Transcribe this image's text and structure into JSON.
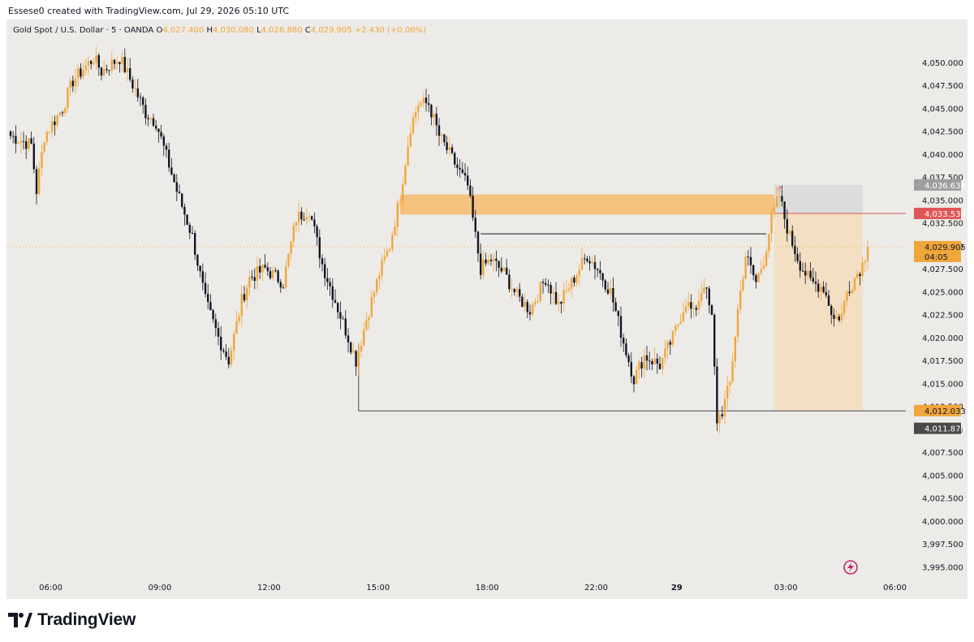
{
  "header": {
    "attribution": "Essese0 created with TradingView.com, Jul 29, 2026 05:10 UTC"
  },
  "symbol_bar": {
    "name": "Gold Spot / U.S. Dollar · 5 · OANDA",
    "o_label": "O",
    "o_value": "4,027.400",
    "h_label": "H",
    "h_value": "4,030.080",
    "l_label": "L",
    "l_value": "4,026.880",
    "c_label": "C",
    "c_value": "4,029.905",
    "change": "+2.430 (+0.06%)"
  },
  "colors": {
    "background": "#edebe8",
    "up_candle": "#f0a63b",
    "down_candle": "#131722",
    "zone": "#f5c27f",
    "target_box": "#f3dfc3",
    "stop_box": "#dcdcdc",
    "stop_badge": "#e05656",
    "price_badge": "#f0a63b"
  },
  "price_badges": {
    "stop_top": "4,036.634",
    "entry": "4,033.530",
    "last": "4,029.905",
    "countdown": "04:05",
    "target": "4,012.033",
    "low": "4,011.879"
  },
  "footer": {
    "brand": "TradingView",
    "logo_icon": "tradingview-logo-icon",
    "lightning_icon": "lightning-icon"
  },
  "chart_data": {
    "type": "candlestick",
    "symbol": "XAUUSD",
    "timeframe": "5",
    "y_ticks": [
      "4,050.000",
      "4,047.500",
      "4,045.000",
      "4,042.500",
      "4,040.000",
      "4,037.500",
      "4,035.000",
      "4,032.500",
      "4,030.000",
      "4,027.500",
      "4,025.000",
      "4,022.500",
      "4,020.000",
      "4,017.500",
      "4,015.000",
      "4,012.500",
      "4,010.000",
      "4,007.500",
      "4,005.000",
      "4,002.500",
      "4,000.000",
      "3,997.500",
      "3,995.000"
    ],
    "ylim": [
      3994.5,
      4052.2
    ],
    "x_ticks": [
      {
        "label": "06:00",
        "bold": false
      },
      {
        "label": "09:00",
        "bold": false
      },
      {
        "label": "12:00",
        "bold": false
      },
      {
        "label": "15:00",
        "bold": false
      },
      {
        "label": "18:00",
        "bold": false
      },
      {
        "label": "22:00",
        "bold": false
      },
      {
        "label": "29",
        "bold": true
      },
      {
        "label": "03:00",
        "bold": false
      },
      {
        "label": "06:00",
        "bold": false
      }
    ],
    "x_tick_candle_index": [
      3,
      45,
      87,
      129,
      171,
      213,
      244,
      286,
      328
    ],
    "candle_count_visible": 331,
    "path": [
      [
        0,
        4042.0
      ],
      [
        8,
        4041.0
      ],
      [
        10,
        4036.0
      ],
      [
        13,
        4042.0
      ],
      [
        20,
        4045.0
      ],
      [
        24,
        4048.0
      ],
      [
        32,
        4050.5
      ],
      [
        35,
        4049.0
      ],
      [
        42,
        4050.5
      ],
      [
        48,
        4047.0
      ],
      [
        52,
        4044.5
      ],
      [
        56,
        4043.5
      ],
      [
        64,
        4036.0
      ],
      [
        70,
        4031.0
      ],
      [
        75,
        4024.0
      ],
      [
        80,
        4020.0
      ],
      [
        84,
        4017.5
      ],
      [
        89,
        4024.0
      ],
      [
        92,
        4026.5
      ],
      [
        98,
        4027.5
      ],
      [
        105,
        4026.0
      ],
      [
        110,
        4033.0
      ],
      [
        115,
        4034.0
      ],
      [
        120,
        4028.0
      ],
      [
        125,
        4024.0
      ],
      [
        130,
        4020.0
      ],
      [
        133,
        4017.5
      ],
      [
        137,
        4022.0
      ],
      [
        142,
        4027.0
      ],
      [
        146,
        4030.0
      ],
      [
        150,
        4035.5
      ],
      [
        154,
        4043.0
      ],
      [
        157,
        4045.5
      ],
      [
        161,
        4045.5
      ],
      [
        165,
        4042.0
      ],
      [
        169,
        4040.0
      ],
      [
        173,
        4038.0
      ],
      [
        176,
        4036.5
      ],
      [
        179,
        4031.0
      ],
      [
        181,
        4027.5
      ],
      [
        185,
        4028.5
      ],
      [
        190,
        4027.0
      ],
      [
        195,
        4024.5
      ],
      [
        200,
        4023.0
      ],
      [
        206,
        4026.5
      ],
      [
        211,
        4023.5
      ],
      [
        216,
        4026.0
      ],
      [
        222,
        4029.0
      ],
      [
        226,
        4027.5
      ],
      [
        231,
        4025.0
      ],
      [
        236,
        4019.5
      ],
      [
        240,
        4015.5
      ],
      [
        244,
        4018.0
      ],
      [
        250,
        4017.0
      ],
      [
        255,
        4020.0
      ],
      [
        260,
        4024.0
      ],
      [
        263,
        4022.5
      ],
      [
        267,
        4026.0
      ],
      [
        270,
        4022.0
      ],
      [
        272,
        4011.0
      ],
      [
        274,
        4012.0
      ],
      [
        277,
        4015.0
      ],
      [
        280,
        4023.0
      ],
      [
        283,
        4029.0
      ],
      [
        287,
        4026.0
      ],
      [
        290,
        4028.5
      ],
      [
        293,
        4033.0
      ],
      [
        296,
        4035.5
      ],
      [
        298,
        4033.0
      ],
      [
        300,
        4031.0
      ],
      [
        304,
        4028.0
      ],
      [
        308,
        4026.0
      ],
      [
        313,
        4025.5
      ],
      [
        317,
        4022.0
      ],
      [
        320,
        4022.5
      ],
      [
        322,
        4025.0
      ],
      [
        325,
        4026.5
      ],
      [
        328,
        4028.0
      ],
      [
        330,
        4029.9
      ]
    ],
    "annotations": {
      "supply_zone": {
        "from_index": 150,
        "to_index": 294,
        "top": 4035.6,
        "bottom": 4033.4
      },
      "horizontal_line_mid": {
        "from_index": 181,
        "to_index": 291,
        "price": 4031.3
      },
      "horizontal_line_low": {
        "from_index": 134,
        "to_index": 357,
        "price": 4012.0
      },
      "position_short": {
        "from_index": 294,
        "to_index": 328,
        "stop": 4036.634,
        "entry": 4033.53,
        "target": 4012.033
      },
      "last_price_dotted": 4029.905
    }
  }
}
